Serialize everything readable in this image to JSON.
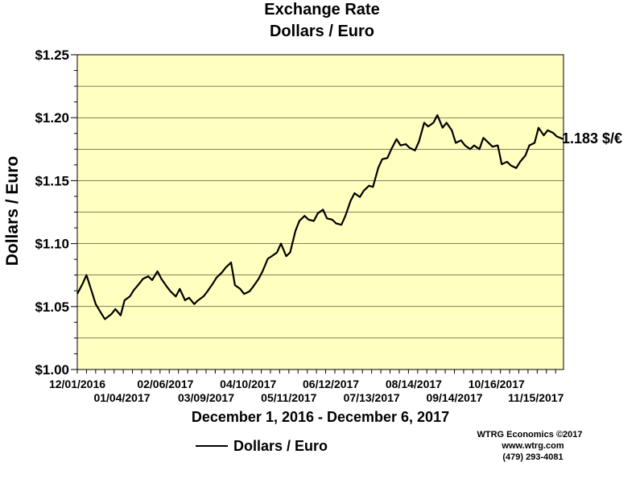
{
  "chart_data": {
    "type": "line",
    "title": "Exchange Rate",
    "subtitle": "Dollars / Euro",
    "ylabel": "Dollars / Euro",
    "xlabel": "December 1, 2016 - December 6, 2017",
    "ylim": [
      1.0,
      1.25
    ],
    "yticks": [
      1.0,
      1.05,
      1.1,
      1.15,
      1.2,
      1.25
    ],
    "ytick_labels": [
      "$1.00",
      "$1.05",
      "$1.10",
      "$1.15",
      "$1.20",
      "$1.25"
    ],
    "xrange": [
      "2016-12-01",
      "2017-12-06"
    ],
    "xticks_row1": [
      "12/01/2016",
      "02/06/2017",
      "04/10/2017",
      "06/12/2017",
      "08/14/2017",
      "10/16/2017"
    ],
    "xticks_row2": [
      "01/04/2017",
      "03/09/2017",
      "05/11/2017",
      "07/13/2017",
      "09/14/2017",
      "11/15/2017"
    ],
    "grid": "horizontal",
    "background_color": "#ffffc0",
    "line_color": "#000000",
    "end_label": "1.183 $/€",
    "legend": {
      "label": "Dollars / Euro",
      "placement": "bottom-left"
    },
    "series": [
      {
        "name": "Dollars / Euro",
        "x": [
          "2016-12-01",
          "2016-12-05",
          "2016-12-08",
          "2016-12-12",
          "2016-12-15",
          "2016-12-19",
          "2016-12-22",
          "2016-12-27",
          "2016-12-30",
          "2017-01-03",
          "2017-01-06",
          "2017-01-10",
          "2017-01-13",
          "2017-01-17",
          "2017-01-20",
          "2017-01-24",
          "2017-01-27",
          "2017-01-31",
          "2017-02-03",
          "2017-02-07",
          "2017-02-10",
          "2017-02-14",
          "2017-02-17",
          "2017-02-21",
          "2017-02-24",
          "2017-02-28",
          "2017-03-03",
          "2017-03-07",
          "2017-03-10",
          "2017-03-14",
          "2017-03-17",
          "2017-03-21",
          "2017-03-24",
          "2017-03-28",
          "2017-03-31",
          "2017-04-04",
          "2017-04-07",
          "2017-04-11",
          "2017-04-14",
          "2017-04-18",
          "2017-04-21",
          "2017-04-25",
          "2017-04-28",
          "2017-05-02",
          "2017-05-05",
          "2017-05-09",
          "2017-05-12",
          "2017-05-16",
          "2017-05-19",
          "2017-05-23",
          "2017-05-26",
          "2017-05-30",
          "2017-06-02",
          "2017-06-06",
          "2017-06-09",
          "2017-06-13",
          "2017-06-16",
          "2017-06-20",
          "2017-06-23",
          "2017-06-27",
          "2017-06-30",
          "2017-07-04",
          "2017-07-07",
          "2017-07-11",
          "2017-07-14",
          "2017-07-18",
          "2017-07-21",
          "2017-07-25",
          "2017-07-28",
          "2017-08-01",
          "2017-08-04",
          "2017-08-08",
          "2017-08-11",
          "2017-08-15",
          "2017-08-18",
          "2017-08-22",
          "2017-08-25",
          "2017-08-29",
          "2017-09-01",
          "2017-09-05",
          "2017-09-08",
          "2017-09-12",
          "2017-09-15",
          "2017-09-19",
          "2017-09-22",
          "2017-09-26",
          "2017-09-29",
          "2017-10-03",
          "2017-10-06",
          "2017-10-10",
          "2017-10-13",
          "2017-10-17",
          "2017-10-20",
          "2017-10-24",
          "2017-10-27",
          "2017-10-31",
          "2017-11-03",
          "2017-11-07",
          "2017-11-10",
          "2017-11-14",
          "2017-11-17",
          "2017-11-21",
          "2017-11-24",
          "2017-11-28",
          "2017-12-01",
          "2017-12-06"
        ],
        "values": [
          1.06,
          1.068,
          1.075,
          1.062,
          1.052,
          1.045,
          1.04,
          1.044,
          1.048,
          1.043,
          1.055,
          1.058,
          1.063,
          1.068,
          1.072,
          1.074,
          1.071,
          1.078,
          1.072,
          1.066,
          1.062,
          1.058,
          1.064,
          1.055,
          1.057,
          1.052,
          1.055,
          1.058,
          1.062,
          1.068,
          1.073,
          1.077,
          1.081,
          1.085,
          1.067,
          1.064,
          1.06,
          1.062,
          1.066,
          1.072,
          1.078,
          1.088,
          1.09,
          1.093,
          1.1,
          1.09,
          1.093,
          1.11,
          1.118,
          1.122,
          1.119,
          1.118,
          1.124,
          1.127,
          1.12,
          1.119,
          1.116,
          1.115,
          1.122,
          1.134,
          1.14,
          1.137,
          1.142,
          1.146,
          1.145,
          1.16,
          1.167,
          1.168,
          1.175,
          1.183,
          1.178,
          1.179,
          1.176,
          1.174,
          1.181,
          1.196,
          1.193,
          1.196,
          1.202,
          1.192,
          1.196,
          1.19,
          1.18,
          1.182,
          1.178,
          1.175,
          1.178,
          1.175,
          1.184,
          1.18,
          1.177,
          1.178,
          1.163,
          1.165,
          1.162,
          1.16,
          1.165,
          1.17,
          1.178,
          1.18,
          1.192,
          1.186,
          1.19,
          1.188,
          1.185,
          1.183
        ]
      }
    ],
    "credits": {
      "line1": "WTRG Economics  ©2017",
      "line2": "www.wtrg.com",
      "line3": "(479) 293-4081"
    }
  }
}
